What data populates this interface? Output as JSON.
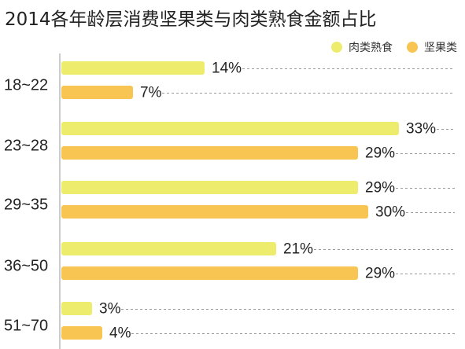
{
  "chart_data": {
    "type": "bar",
    "orientation": "horizontal",
    "title": "2014各年龄层消费坚果类与肉类熟食金额占比",
    "categories": [
      "18~22",
      "23~28",
      "29~35",
      "36~50",
      "51~70"
    ],
    "series": [
      {
        "name": "肉类熟食",
        "color": "#eeec6c",
        "values": [
          14,
          33,
          29,
          21,
          3
        ],
        "labels": [
          "14%",
          "33%",
          "29%",
          "21%",
          "3%"
        ]
      },
      {
        "name": "坚果类",
        "color": "#f8c552",
        "values": [
          7,
          29,
          30,
          29,
          4
        ],
        "labels": [
          "7%",
          "29%",
          "30%",
          "29%",
          "4%"
        ]
      }
    ],
    "legend": "top-right",
    "grid": false
  }
}
